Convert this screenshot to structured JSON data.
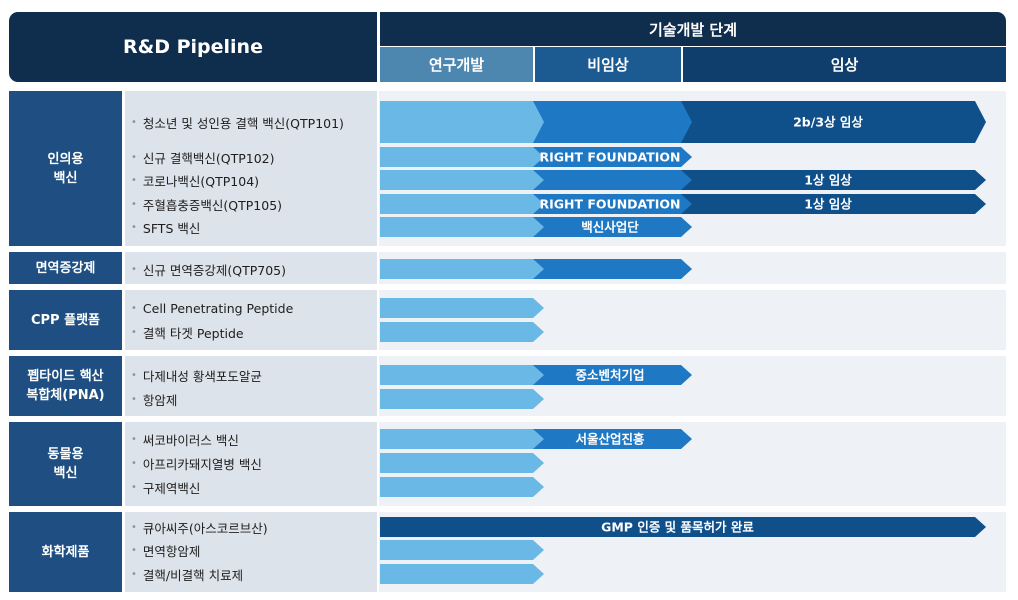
{
  "header": {
    "title": "R&D Pipeline",
    "stage_title": "기술개발 단계",
    "phases": [
      "연구개발",
      "비임상",
      "임상"
    ]
  },
  "colors": {
    "research": "#6ab8e6",
    "preclinical": "#1f78c4",
    "clinical": "#0f4f8a",
    "header": "#0f2d4d",
    "category": "#1f4f82"
  },
  "chart_data": {
    "type": "table",
    "categories": [
      "연구개발",
      "비임상",
      "임상"
    ],
    "groups": [
      {
        "category": "인의용\n백신",
        "items": [
          {
            "name": "청소년 및 성인용 결핵 백신(QTP101)",
            "stage": 3,
            "label": "2b/3상 임상"
          },
          {
            "name": "신규 결핵백신(QTP102)",
            "stage": 2,
            "label": "RIGHT FOUNDATION"
          },
          {
            "name": "코로나백신(QTP104)",
            "stage": 3,
            "label": "1상 임상"
          },
          {
            "name": "주혈흡충증백신(QTP105)",
            "stage": 3,
            "label": "1상 임상",
            "stage2_label": "RIGHT FOUNDATION"
          },
          {
            "name": "SFTS 백신",
            "stage": 2,
            "label": "백신사업단"
          }
        ]
      },
      {
        "category": "면역증강제",
        "items": [
          {
            "name": "신규 면역증강제(QTP705)",
            "stage": 2,
            "label": ""
          }
        ]
      },
      {
        "category": "CPP 플랫폼",
        "items": [
          {
            "name": "Cell Penetrating Peptide",
            "stage": 1,
            "label": ""
          },
          {
            "name": "결핵 타겟 Peptide",
            "stage": 1,
            "label": ""
          }
        ]
      },
      {
        "category": "펩타이드 핵산\n복합체(PNA)",
        "items": [
          {
            "name": "다제내성 황색포도알균",
            "stage": 2,
            "label": "중소벤처기업"
          },
          {
            "name": "항암제",
            "stage": 1,
            "label": ""
          }
        ]
      },
      {
        "category": "동물용\n백신",
        "items": [
          {
            "name": "써코바이러스 백신",
            "stage": 2,
            "label": "서울산업진흥"
          },
          {
            "name": "아프리카돼지열병 백신",
            "stage": 1,
            "label": ""
          },
          {
            "name": "구제역백신",
            "stage": 1,
            "label": ""
          }
        ]
      },
      {
        "category": "화학제품",
        "items": [
          {
            "name": "큐아씨주(아스코르브산)",
            "stage": 3,
            "label": "GMP 인증 및 품목허가 완료",
            "single": true
          },
          {
            "name": "면역항암제",
            "stage": 1,
            "label": ""
          },
          {
            "name": "결핵/비결핵 치료제",
            "stage": 1,
            "label": ""
          }
        ]
      }
    ]
  }
}
